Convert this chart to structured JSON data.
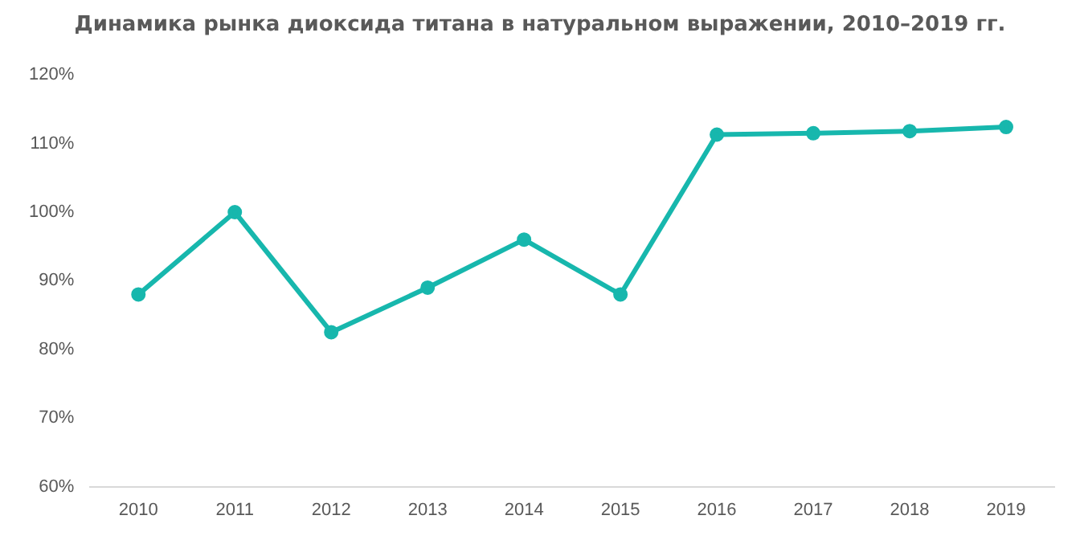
{
  "chart_data": {
    "type": "line",
    "title": "Динамика рынка диоксида титана в натуральном выражении, 2010–2019 гг.",
    "categories": [
      "2010",
      "2011",
      "2012",
      "2013",
      "2014",
      "2015",
      "2016",
      "2017",
      "2018",
      "2019"
    ],
    "series": [
      {
        "color": "#17b7ad",
        "values": [
          88,
          100,
          82.5,
          89,
          96,
          88,
          111.3,
          111.5,
          111.8,
          112.4
        ]
      }
    ],
    "ylim": [
      60,
      120
    ],
    "yticks": [
      {
        "value": 60,
        "label": "60%"
      },
      {
        "value": 70,
        "label": "70%"
      },
      {
        "value": 80,
        "label": "80%"
      },
      {
        "value": 90,
        "label": "90%"
      },
      {
        "value": 100,
        "label": "100%"
      },
      {
        "value": 110,
        "label": "110%"
      },
      {
        "value": 120,
        "label": "120%"
      }
    ],
    "grid": false,
    "legend": false,
    "marker": "circle",
    "line_style": "solid"
  }
}
